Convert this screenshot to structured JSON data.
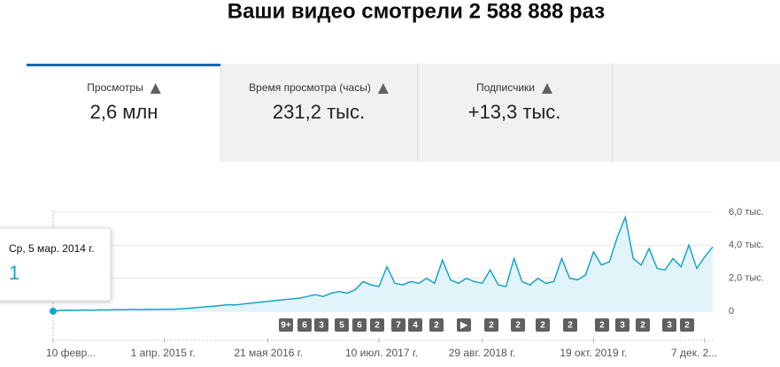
{
  "header": {
    "title": "Ваши видео смотрели 2 588 888 раз"
  },
  "tabs": [
    {
      "label": "Просмотры",
      "value": "2,6 млн"
    },
    {
      "label": "Время просмотра (часы)",
      "value": "231,2 тыс."
    },
    {
      "label": "Подписчики",
      "value": "+13,3 тыс."
    }
  ],
  "tooltip": {
    "date": "Ср, 5 мар. 2014 г."
  },
  "chart_data": {
    "type": "area",
    "color": "#1aa3c8",
    "categories": [
      "10 февр...",
      null,
      null,
      null,
      null,
      null,
      null,
      null,
      null,
      null,
      null,
      null,
      null,
      null,
      "1 апр. 2015 г.",
      null,
      null,
      null,
      null,
      null,
      null,
      null,
      null,
      null,
      null,
      null,
      null,
      "21 мая 2016 г.",
      null,
      null,
      null,
      null,
      null,
      null,
      null,
      null,
      null,
      null,
      null,
      null,
      null,
      "10 июл. 2017 г.",
      null,
      null,
      null,
      null,
      null,
      null,
      null,
      null,
      null,
      null,
      null,
      null,
      "29 авг. 2018 г.",
      null,
      null,
      null,
      null,
      null,
      null,
      null,
      null,
      null,
      null,
      null,
      null,
      null,
      "19 окт. 2019 г.",
      null,
      null,
      null,
      null,
      null,
      null,
      null,
      null,
      null,
      null,
      null,
      null,
      null,
      "7 дек. 2...",
      null
    ],
    "values": [
      1,
      60,
      70,
      60,
      80,
      70,
      90,
      80,
      100,
      90,
      110,
      100,
      120,
      110,
      130,
      120,
      150,
      180,
      220,
      260,
      300,
      350,
      400,
      380,
      450,
      500,
      550,
      600,
      650,
      700,
      750,
      800,
      900,
      1000,
      900,
      1100,
      1200,
      1100,
      1300,
      1800,
      1600,
      1500,
      2700,
      1700,
      1600,
      1800,
      1700,
      2000,
      1700,
      3100,
      1900,
      1700,
      2000,
      1800,
      1700,
      2500,
      1600,
      1500,
      3200,
      1800,
      1600,
      2000,
      1700,
      1800,
      3200,
      2000,
      1900,
      2200,
      3600,
      2800,
      3000,
      4500,
      5700,
      3200,
      2800,
      3800,
      2600,
      2500,
      3200,
      2700,
      4000,
      2600,
      3300,
      3900
    ],
    "ylim": [
      0,
      6000
    ],
    "yticks": [
      {
        "value": 0,
        "label": "0"
      },
      {
        "value": 2000,
        "label": "2,0 тыс."
      },
      {
        "value": 4000,
        "label": "4,0 тыс."
      },
      {
        "value": 6000,
        "label": "6,0 тыс."
      }
    ],
    "annotations": [
      "9+",
      "6",
      "3",
      "5",
      "6",
      "2",
      "7",
      "4",
      "2",
      "▶",
      "2",
      "2",
      "2",
      "2",
      "2",
      "3",
      "2",
      "3",
      "2"
    ]
  }
}
